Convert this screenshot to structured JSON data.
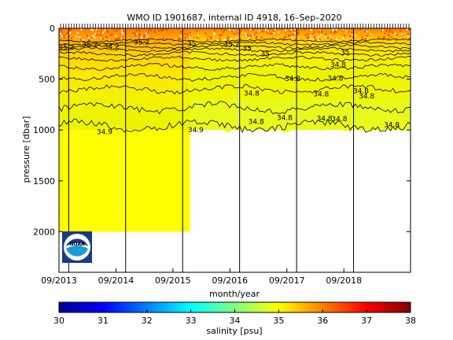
{
  "chart_data": {
    "type": "heatmap",
    "title": "WMO ID 1901687, internal ID 4918, 16–Sep–2020",
    "xlabel": "month/year",
    "ylabel": "pressure [dbar]",
    "x_ticks": [
      "09/2013",
      "09/2014",
      "09/2015",
      "09/2016",
      "09/2017",
      "09/2018"
    ],
    "y_ticks": [
      0,
      500,
      1000,
      1500,
      2000
    ],
    "ylim": [
      2400,
      0
    ],
    "x_range": [
      "2013-09",
      "2019-10"
    ],
    "colorbar": {
      "label": "salinity [psu]",
      "min": 30,
      "max": 38,
      "ticks": [
        30,
        31,
        32,
        33,
        34,
        35,
        36,
        37,
        38
      ],
      "colormap": "jet"
    },
    "contour_labels": [
      {
        "text": "35.2",
        "t": 0.13,
        "p": 210
      },
      {
        "text": "35.2",
        "t": 0.54,
        "p": 180
      },
      {
        "text": "34.2",
        "t": 0.92,
        "p": 200
      },
      {
        "text": "35.2",
        "t": 1.45,
        "p": 160
      },
      {
        "text": "35",
        "t": 2.33,
        "p": 175
      },
      {
        "text": "35.2",
        "t": 3.03,
        "p": 180
      },
      {
        "text": "35",
        "t": 3.3,
        "p": 220
      },
      {
        "text": "35",
        "t": 3.62,
        "p": 275
      },
      {
        "text": "35",
        "t": 5.02,
        "p": 260
      },
      {
        "text": "34.8",
        "t": 4.9,
        "p": 380
      },
      {
        "text": "34.8",
        "t": 4.1,
        "p": 520
      },
      {
        "text": "34.8",
        "t": 4.85,
        "p": 515
      },
      {
        "text": "34.8",
        "t": 3.38,
        "p": 660
      },
      {
        "text": "34.8",
        "t": 4.6,
        "p": 670
      },
      {
        "text": "34.8",
        "t": 5.3,
        "p": 640
      },
      {
        "text": "34.8",
        "t": 5.4,
        "p": 690
      },
      {
        "text": "34.8",
        "t": 3.46,
        "p": 940
      },
      {
        "text": "34.8",
        "t": 3.96,
        "p": 900
      },
      {
        "text": "34.8",
        "t": 4.66,
        "p": 910
      },
      {
        "text": "34.8",
        "t": 4.92,
        "p": 915
      },
      {
        "text": "34.8",
        "t": 5.84,
        "p": 970
      },
      {
        "text": "34.9",
        "t": 0.8,
        "p": 1040
      },
      {
        "text": "34.9",
        "t": 2.4,
        "p": 1020
      }
    ],
    "vertical_year_lines": [
      0.17,
      1.17,
      2.17,
      3.17,
      4.17,
      5.17
    ],
    "depth_coverage": [
      {
        "from": 0.0,
        "to": 2.3,
        "max_pressure": 2000
      },
      {
        "from": 2.3,
        "to": 6.16,
        "max_pressure": 1000
      }
    ]
  },
  "logo": {
    "text": "NOAA"
  }
}
